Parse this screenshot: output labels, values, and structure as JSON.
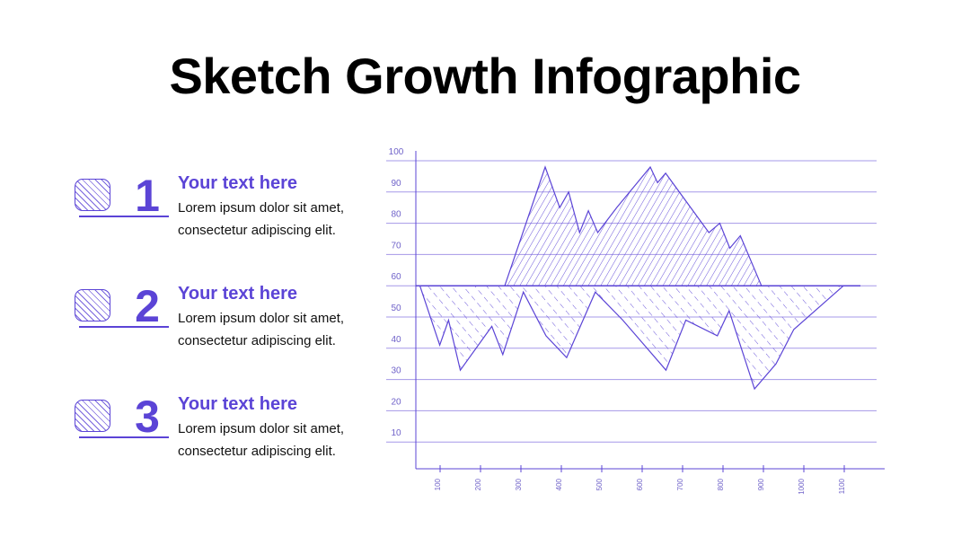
{
  "header": {
    "title": "Sketch Growth Infographic"
  },
  "items": [
    {
      "number": "1",
      "title": "Your text here",
      "lines": [
        "Lorem ipsum dolor sit amet,",
        "consectetur adipiscing elit."
      ]
    },
    {
      "number": "2",
      "title": "Your text here",
      "lines": [
        "Lorem ipsum dolor sit amet,",
        "consectetur adipiscing elit."
      ]
    },
    {
      "number": "3",
      "title": "Your text here",
      "lines": [
        "Lorem ipsum dolor sit amet,",
        "consectetur adipiscing elit."
      ]
    }
  ],
  "chart_data": {
    "type": "area",
    "baseline": 60,
    "color": "#5b44d6",
    "series": [
      {
        "x": [
          260,
          360,
          396,
          418,
          445,
          467,
          490,
          537,
          620,
          638,
          658,
          765,
          792,
          817,
          843,
          895
        ],
        "values": [
          60,
          98,
          85,
          90,
          77,
          84,
          77,
          85,
          98,
          93,
          96,
          77,
          80,
          72,
          76,
          60
        ]
      },
      {
        "x": [
          50,
          99,
          121,
          150,
          228,
          255,
          306,
          362,
          413,
          484,
          552,
          659,
          708,
          786,
          815,
          878,
          931,
          975,
          1098
        ],
        "values": [
          60,
          41,
          49,
          33,
          47,
          38,
          58,
          44,
          37,
          58,
          49,
          33,
          49,
          44,
          52,
          27,
          35,
          46,
          60
        ]
      }
    ],
    "xlim": [
      40,
      1200
    ],
    "ylim": [
      0,
      100
    ],
    "xticks": [
      100,
      200,
      300,
      400,
      500,
      600,
      700,
      800,
      900,
      1000,
      1100
    ],
    "yticks": [
      10,
      20,
      30,
      40,
      50,
      60,
      70,
      80,
      90,
      100
    ],
    "grid": true
  }
}
